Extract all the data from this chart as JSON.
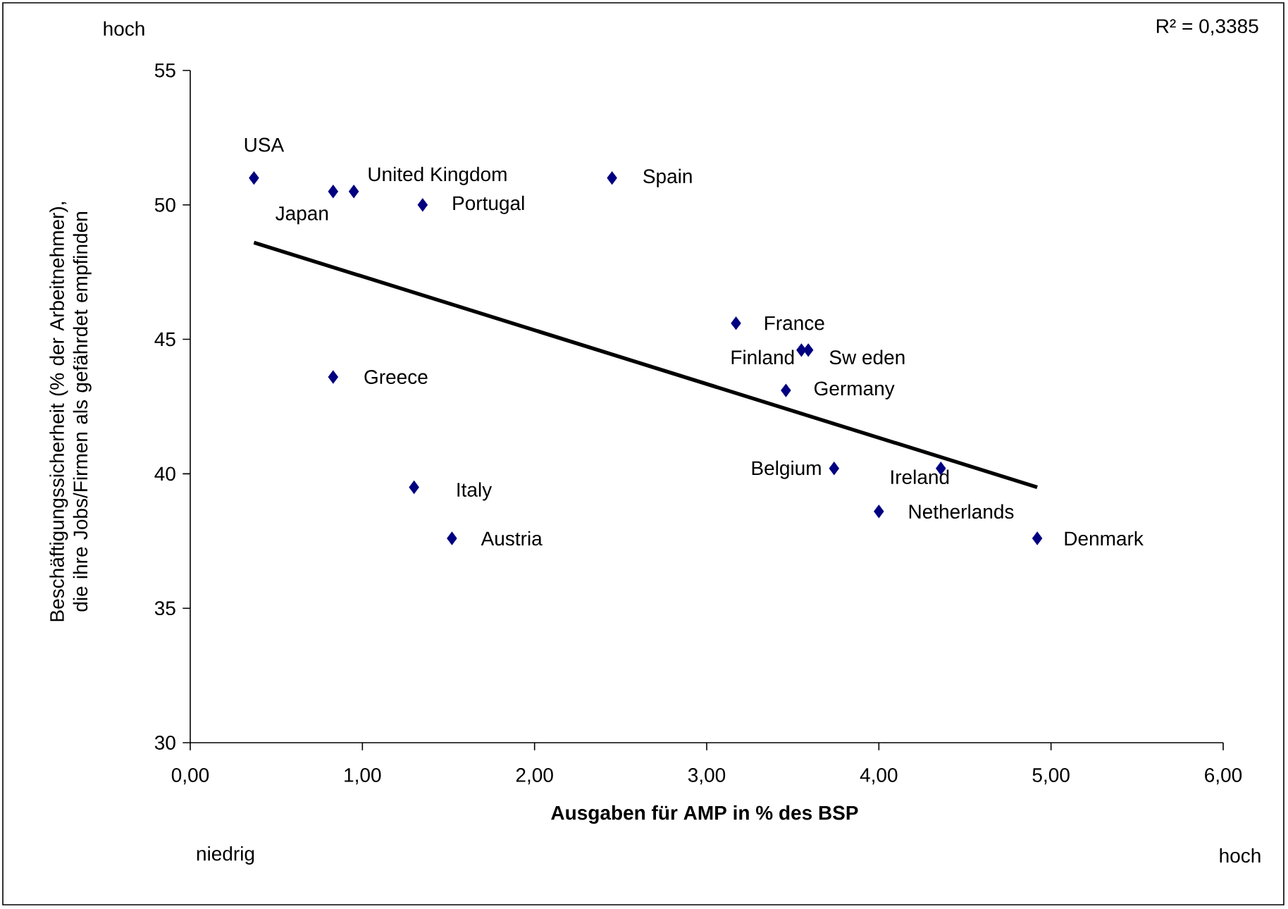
{
  "chart_data": {
    "type": "scatter",
    "xlabel": "Ausgaben für AMP in % des BSP",
    "ylabel": "Beschäftigungssicherheit (% der Arbeitnehmer), die ihre Jobs/Firmen als gefährdet empfinden",
    "xlim": [
      0,
      6
    ],
    "ylim": [
      30,
      55
    ],
    "xticks": [
      {
        "value": 0,
        "label": "0,00"
      },
      {
        "value": 1,
        "label": "1,00"
      },
      {
        "value": 2,
        "label": "2,00"
      },
      {
        "value": 3,
        "label": "3,00"
      },
      {
        "value": 4,
        "label": "4,00"
      },
      {
        "value": 5,
        "label": "5,00"
      },
      {
        "value": 6,
        "label": "6,00"
      }
    ],
    "yticks": [
      30,
      35,
      40,
      45,
      50,
      55
    ],
    "series": [
      {
        "color": "#000080",
        "marker": "diamond",
        "x": [
          0.37,
          0.83,
          0.95,
          1.35,
          2.45,
          3.17,
          3.55,
          3.59,
          3.46,
          3.74,
          4.36,
          4.0,
          4.92,
          0.83,
          1.3,
          1.52
        ],
        "values": [
          51.0,
          50.5,
          50.5,
          50.0,
          51.0,
          45.6,
          44.6,
          44.6,
          43.1,
          40.2,
          40.2,
          38.6,
          37.6,
          43.6,
          39.5,
          37.6
        ]
      },
      {
        "type": "line",
        "color": "#000000",
        "marker": "none",
        "line_style": "solid",
        "x": [
          0.37,
          4.92
        ],
        "values": [
          48.6,
          39.5
        ]
      }
    ],
    "annotations": [
      {
        "text": "USA",
        "x": 0.37,
        "y": 51.0
      },
      {
        "text": "Japan",
        "x": 0.83,
        "y": 50.5
      },
      {
        "text": "United Kingdom",
        "x": 0.95,
        "y": 50.5
      },
      {
        "text": "Portugal",
        "x": 1.35,
        "y": 50.0
      },
      {
        "text": "Spain",
        "x": 2.45,
        "y": 51.0
      },
      {
        "text": "France",
        "x": 3.17,
        "y": 45.6
      },
      {
        "text": "Finland",
        "x": 3.55,
        "y": 44.6
      },
      {
        "text": "Sw eden",
        "x": 3.59,
        "y": 44.6
      },
      {
        "text": "Germany",
        "x": 3.46,
        "y": 43.1
      },
      {
        "text": "Belgium",
        "x": 3.74,
        "y": 40.2
      },
      {
        "text": "Ireland",
        "x": 4.36,
        "y": 40.2
      },
      {
        "text": "Netherlands",
        "x": 4.0,
        "y": 38.6
      },
      {
        "text": "Denmark",
        "x": 4.92,
        "y": 37.6
      },
      {
        "text": "Greece",
        "x": 0.83,
        "y": 43.6
      },
      {
        "text": "Italy",
        "x": 1.3,
        "y": 39.5
      },
      {
        "text": "Austria",
        "x": 1.52,
        "y": 37.6
      },
      "R² = 0,3385",
      "hoch",
      "niedrig",
      "hoch"
    ]
  }
}
